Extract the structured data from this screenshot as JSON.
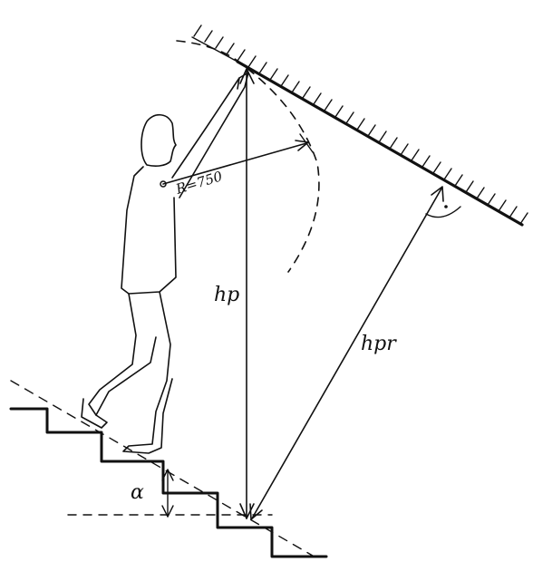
{
  "labels": {
    "radius": "R=750",
    "hp": "hp",
    "hpr": "hpr",
    "alpha": "α"
  },
  "colors": {
    "ink": "#111111",
    "background": "#ffffff"
  }
}
